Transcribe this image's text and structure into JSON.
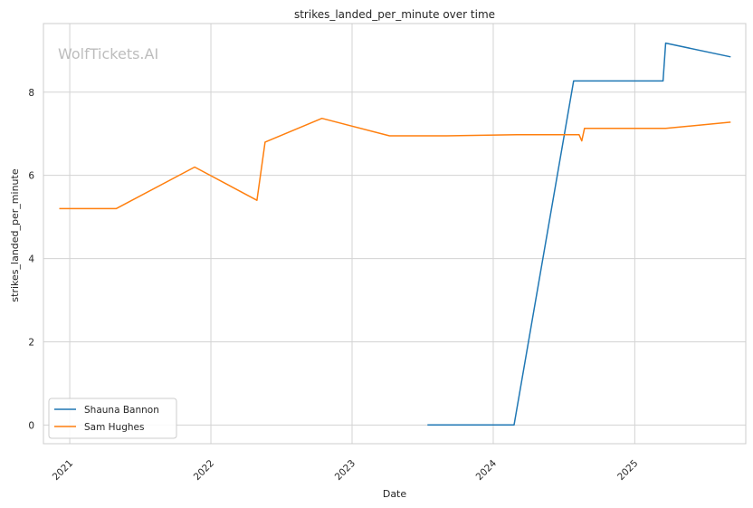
{
  "chart_data": {
    "type": "line",
    "title": "strikes_landed_per_minute over time",
    "xlabel": "Date",
    "ylabel": "strikes_landed_per_minute",
    "watermark": "WolfTickets.AI",
    "xlim": [
      "2020-10-25",
      "2025-10-15"
    ],
    "ylim": [
      -0.45,
      9.65
    ],
    "x_ticks": [
      "2021-01-01",
      "2022-01-01",
      "2023-01-01",
      "2024-01-01",
      "2025-01-01"
    ],
    "x_tick_labels": [
      "2021",
      "2022",
      "2023",
      "2024",
      "2025"
    ],
    "y_ticks": [
      0,
      2,
      4,
      6,
      8
    ],
    "y_tick_labels": [
      "0",
      "2",
      "4",
      "6",
      "8"
    ],
    "grid": true,
    "legend": "lower-left",
    "series": [
      {
        "name": "Shauna Bannon",
        "color": "#1f77b4",
        "points": [
          {
            "x": "2023-07-15",
            "y": 0.0
          },
          {
            "x": "2024-02-24",
            "y": 0.0
          },
          {
            "x": "2024-07-27",
            "y": 8.27
          },
          {
            "x": "2025-03-15",
            "y": 8.27
          },
          {
            "x": "2025-03-22",
            "y": 9.18
          },
          {
            "x": "2025-09-06",
            "y": 8.85
          }
        ]
      },
      {
        "name": "Sam Hughes",
        "color": "#ff7f0e",
        "points": [
          {
            "x": "2020-12-05",
            "y": 5.2
          },
          {
            "x": "2021-05-01",
            "y": 5.2
          },
          {
            "x": "2021-11-20",
            "y": 6.2
          },
          {
            "x": "2022-04-30",
            "y": 5.4
          },
          {
            "x": "2022-05-21",
            "y": 6.8
          },
          {
            "x": "2022-10-15",
            "y": 7.37
          },
          {
            "x": "2023-04-08",
            "y": 6.95
          },
          {
            "x": "2023-09-02",
            "y": 6.95
          },
          {
            "x": "2024-03-02",
            "y": 6.98
          },
          {
            "x": "2024-08-10",
            "y": 6.98
          },
          {
            "x": "2024-08-17",
            "y": 6.83
          },
          {
            "x": "2024-08-24",
            "y": 7.13
          },
          {
            "x": "2025-03-22",
            "y": 7.13
          },
          {
            "x": "2025-09-06",
            "y": 7.28
          }
        ]
      }
    ]
  }
}
